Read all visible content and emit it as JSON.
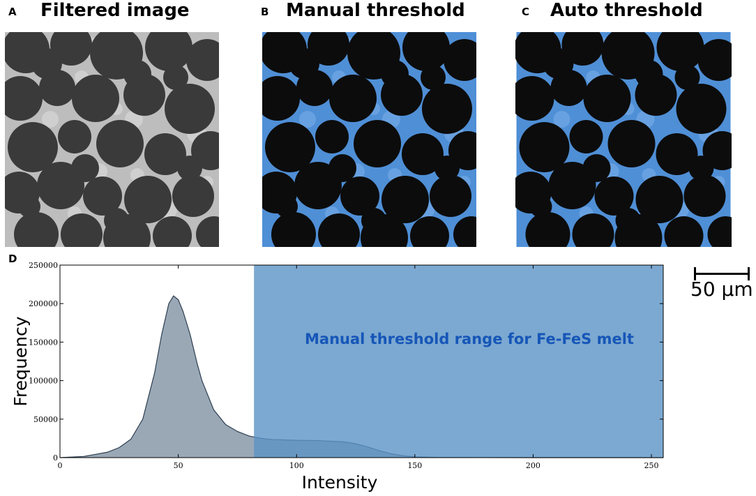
{
  "panels": {
    "a": {
      "letter": "A",
      "title": "Filtered image"
    },
    "b": {
      "letter": "B",
      "title": "Manual threshold"
    },
    "c": {
      "letter": "C",
      "title": "Auto threshold"
    },
    "d": {
      "letter": "D"
    }
  },
  "colors": {
    "background_gray": "#555555",
    "grain_gray": "#3a3a3a",
    "melt_gray": "#bdbdbd",
    "grain_black": "#0c0c0c",
    "melt_blue": "#4f8fd6",
    "histogram_fill": "#9aa8b6",
    "threshold_band": "#5b93c6",
    "annotation_text": "#1656b8"
  },
  "scalebar": {
    "label": "50 μm"
  },
  "chart_data": {
    "type": "area",
    "title": "",
    "xlabel": "Intensity",
    "ylabel": "Frequency",
    "xlim": [
      0,
      255
    ],
    "ylim": [
      0,
      250000
    ],
    "xticks": [
      0,
      50,
      100,
      150,
      200,
      250
    ],
    "yticks": [
      0,
      50000,
      100000,
      150000,
      200000,
      250000
    ],
    "x": [
      0,
      10,
      20,
      25,
      30,
      35,
      40,
      43,
      46,
      48,
      50,
      52,
      55,
      58,
      60,
      65,
      70,
      75,
      80,
      85,
      90,
      100,
      110,
      120,
      125,
      130,
      135,
      140,
      145,
      150,
      160,
      180,
      200,
      255
    ],
    "y": [
      0,
      1500,
      7000,
      13000,
      24000,
      50000,
      110000,
      160000,
      200000,
      210000,
      205000,
      190000,
      160000,
      122000,
      100000,
      62000,
      43000,
      34000,
      28000,
      25000,
      23500,
      22500,
      22000,
      20500,
      18000,
      14000,
      9000,
      5000,
      2500,
      1000,
      300,
      100,
      0,
      0
    ],
    "threshold_range": {
      "min": 82,
      "max": 255,
      "label": "Manual threshold range for Fe-FeS melt"
    },
    "grid": false
  }
}
